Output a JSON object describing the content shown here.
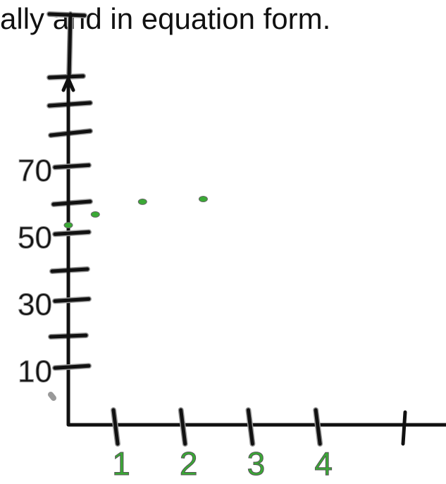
{
  "chart_data": {
    "type": "scatter",
    "title": "ally and in equation form.",
    "x": [
      0.3,
      0.7,
      1.4,
      2.3
    ],
    "values": [
      52.7,
      55.9,
      59.7,
      60.5
    ],
    "color": "#3aa935",
    "xlim": [
      0.3,
      5.9
    ],
    "xticks": [
      1,
      2,
      3,
      4
    ],
    "ylim": [
      -7,
      96
    ],
    "yticks": [
      10,
      30,
      50,
      70
    ]
  }
}
